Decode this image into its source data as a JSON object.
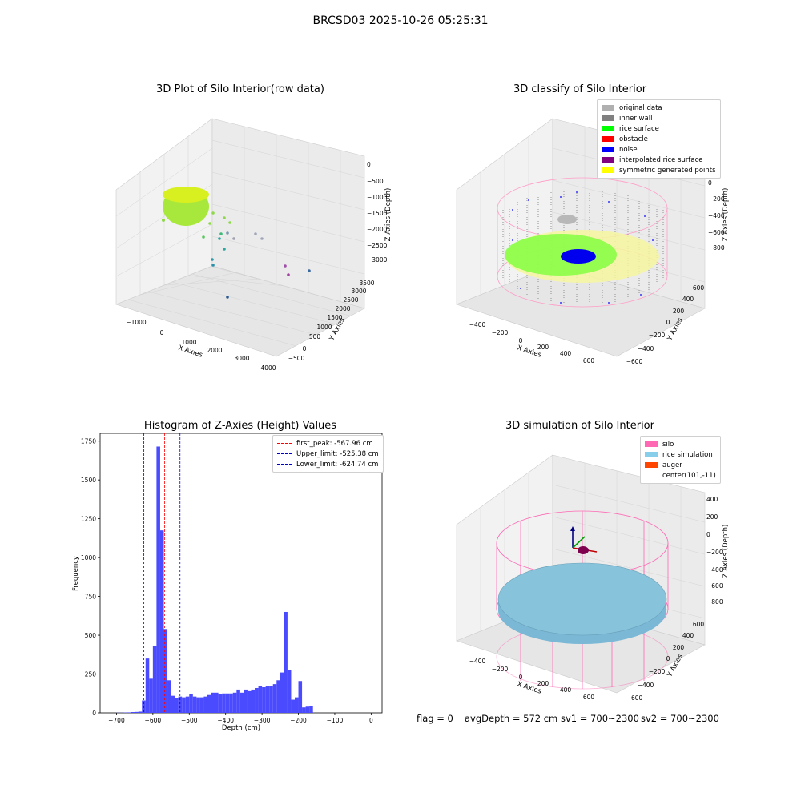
{
  "suptitle": "BRCSD03 2025-10-26 05:25:31",
  "colors": {
    "original": "#b0b0b0",
    "inner_wall": "#808080",
    "rice_surface": "#00ff00",
    "obstacle": "#ff0000",
    "noise": "#0000ff",
    "interpolated": "#800080",
    "symmetric": "#ffff00",
    "silo": "#ff69b4",
    "rice_sim": "#87ceeb",
    "auger": "#ff4500",
    "hist_bar": "#4a4aff",
    "peak": "#ff0000",
    "limit": "#0000cd"
  },
  "plot1": {
    "title": "3D Plot of Silo Interior(row data)",
    "xlabel": "X Axies",
    "ylabel": "Y Axies",
    "zlabel": "Z Axies (Depth)",
    "xticks": [
      "−1000",
      "0",
      "1000",
      "2000",
      "3000",
      "4000"
    ],
    "yticks": [
      "−500",
      "0",
      "500",
      "1000",
      "1500",
      "2000",
      "2500",
      "3000",
      "3500"
    ],
    "zticks": [
      "0",
      "−500",
      "−1000",
      "−1500",
      "−2000",
      "−2500",
      "−3000"
    ]
  },
  "plot2": {
    "title": "3D classify of Silo Interior",
    "xlabel": "X Axies",
    "ylabel": "Y Axies",
    "zlabel": "Z Axies (Depth)",
    "xticks": [
      "−400",
      "−200",
      "0",
      "200",
      "400",
      "600"
    ],
    "yticks": [
      "−600",
      "−400",
      "−200",
      "0",
      "200",
      "400",
      "600"
    ],
    "zticks": [
      "200",
      "0",
      "−200",
      "−400",
      "−600",
      "−800"
    ],
    "legend": [
      {
        "label": "original data",
        "color": "#b0b0b0"
      },
      {
        "label": "inner wall",
        "color": "#808080"
      },
      {
        "label": "rice surface",
        "color": "#00ff00"
      },
      {
        "label": "obstacle",
        "color": "#ff0000"
      },
      {
        "label": "noise",
        "color": "#0000ff"
      },
      {
        "label": "interpolated rice surface",
        "color": "#800080"
      },
      {
        "label": "symmetric generated points",
        "color": "#ffff00"
      }
    ]
  },
  "plot4": {
    "title": "3D simulation of Silo Interior",
    "xlabel": "X Axies",
    "ylabel": "Y Axies",
    "zlabel": "Z Axies (Depth)",
    "xticks": [
      "−400",
      "−200",
      "0",
      "200",
      "400",
      "600"
    ],
    "yticks": [
      "−600",
      "−400",
      "−200",
      "0",
      "200",
      "400",
      "600"
    ],
    "zticks": [
      "400",
      "200",
      "0",
      "−200",
      "−400",
      "−600",
      "−800"
    ],
    "legend": [
      {
        "label": "silo",
        "color": "#ff69b4"
      },
      {
        "label": "rice simulation",
        "color": "#87ceeb"
      },
      {
        "label": "auger",
        "color": "#ff4500"
      },
      {
        "label": "center(101,-11)",
        "color": ""
      }
    ]
  },
  "footer": {
    "flag": "flag = 0",
    "avg": "avgDepth = 572 cm",
    "sv1": "sv1 = 700~2300",
    "sv2": "sv2 = 700~2300"
  },
  "chart_data": {
    "type": "bar",
    "title": "Histogram of Z-Axies (Height) Values",
    "xlabel": "Depth (cm)",
    "ylabel": "Frequency",
    "xlim": [
      -745,
      30
    ],
    "ylim": [
      0,
      1800
    ],
    "xticks": [
      -700,
      -600,
      -500,
      -400,
      -300,
      -200,
      -100,
      0
    ],
    "yticks": [
      0,
      250,
      500,
      750,
      1000,
      1250,
      1500,
      1750
    ],
    "bin_width": 10,
    "bins_start": [
      -700,
      -690,
      -680,
      -670,
      -660,
      -650,
      -640,
      -630,
      -620,
      -610,
      -600,
      -590,
      -580,
      -570,
      -560,
      -550,
      -540,
      -530,
      -520,
      -510,
      -500,
      -490,
      -480,
      -470,
      -460,
      -450,
      -440,
      -430,
      -420,
      -410,
      -400,
      -390,
      -380,
      -370,
      -360,
      -350,
      -340,
      -330,
      -320,
      -310,
      -300,
      -290,
      -280,
      -270,
      -260,
      -250,
      -240,
      -230,
      -220,
      -210,
      -200,
      -190,
      -180,
      -170,
      -160,
      -150,
      -140,
      -130,
      -120,
      -110,
      -100,
      -90,
      -80,
      -70,
      -60,
      -50,
      -40,
      -30,
      -20,
      -10,
      0
    ],
    "values": [
      1,
      1,
      2,
      3,
      5,
      6,
      8,
      80,
      350,
      220,
      430,
      1715,
      1175,
      540,
      210,
      110,
      95,
      105,
      100,
      105,
      120,
      105,
      100,
      100,
      105,
      115,
      130,
      130,
      120,
      125,
      125,
      125,
      130,
      150,
      130,
      150,
      140,
      150,
      160,
      175,
      165,
      170,
      175,
      185,
      210,
      260,
      650,
      275,
      85,
      100,
      205,
      35,
      40,
      45,
      0,
      0,
      0,
      0,
      0,
      0,
      0,
      0,
      0,
      0,
      0,
      0,
      0,
      0,
      0,
      0,
      0
    ],
    "vlines": [
      {
        "x": -567.96,
        "label": "first_peak: -567.96 cm",
        "color": "#ff0000"
      },
      {
        "x": -525.38,
        "label": "Upper_limit: -525.38 cm",
        "color": "#0000cd"
      },
      {
        "x": -624.74,
        "label": "Lower_limit: -624.74 cm",
        "color": "#0000cd"
      }
    ],
    "legend_position": "top-right"
  }
}
